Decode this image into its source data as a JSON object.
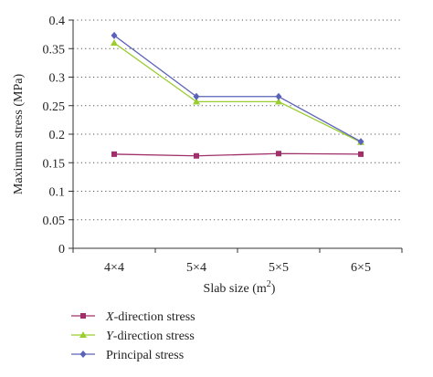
{
  "chart_data": {
    "type": "line",
    "categories": [
      "4×4",
      "5×4",
      "5×5",
      "6×5"
    ],
    "series": [
      {
        "name": "X-direction stress",
        "name_italic": "X",
        "name_rest": "-direction stress",
        "color": "#a0306a",
        "marker": "square",
        "values": [
          0.165,
          0.162,
          0.166,
          0.165
        ]
      },
      {
        "name": "Y-direction stress",
        "name_italic": "Y",
        "name_rest": "-direction stress",
        "color": "#9acd32",
        "marker": "triangle",
        "values": [
          0.36,
          0.257,
          0.257,
          0.186
        ]
      },
      {
        "name": "Principal stress",
        "name_italic": "",
        "name_rest": "Principal stress",
        "color": "#5b63b8",
        "marker": "diamond",
        "values": [
          0.373,
          0.266,
          0.266,
          0.187
        ]
      }
    ],
    "title": "",
    "xlabel": "Slab size (m",
    "xlabel_sup": "2",
    "xlabel_close": ")",
    "ylabel": "Maximum stress (MPa)",
    "ylim": [
      0,
      0.4
    ],
    "yticks": [
      "0",
      "0.05",
      "0.1",
      "0.15",
      "0.2",
      "0.25",
      "0.3",
      "0.35",
      "0.4"
    ],
    "grid": "horizontal dotted",
    "legend_position": "bottom-left"
  }
}
